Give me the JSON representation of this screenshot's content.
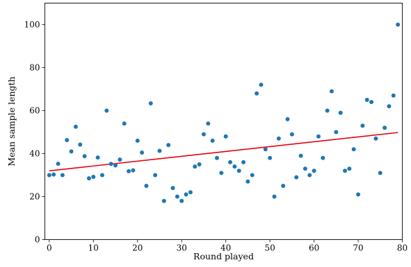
{
  "chart_data": {
    "type": "scatter",
    "xlabel": "Round played",
    "ylabel": "Mean sample length",
    "xlim": [
      -1,
      80
    ],
    "ylim": [
      0,
      110
    ],
    "xticks": [
      0,
      10,
      20,
      30,
      40,
      50,
      60,
      70,
      80
    ],
    "yticks": [
      0,
      20,
      40,
      60,
      80,
      100
    ],
    "grid": false,
    "series": [
      {
        "kind": "points",
        "color": "#1f77b4",
        "x": [
          0,
          1,
          2,
          3,
          4,
          5,
          6,
          7,
          8,
          9,
          10,
          11,
          12,
          13,
          14,
          15,
          16,
          17,
          18,
          19,
          20,
          21,
          22,
          23,
          24,
          25,
          26,
          27,
          28,
          29,
          30,
          31,
          32,
          33,
          34,
          35,
          36,
          37,
          38,
          39,
          40,
          41,
          42,
          43,
          44,
          45,
          46,
          47,
          48,
          49,
          50,
          51,
          52,
          53,
          54,
          55,
          56,
          57,
          58,
          59,
          60,
          61,
          62,
          63,
          64,
          65,
          66,
          67,
          68,
          69,
          70,
          71,
          72,
          73,
          74,
          75,
          76,
          77,
          78,
          79
        ],
        "y": [
          30,
          30.3,
          35.3,
          30,
          46.3,
          41,
          52.5,
          44.2,
          38.8,
          28.5,
          29.2,
          38.2,
          30,
          60,
          35.2,
          34.5,
          37.2,
          54,
          31.8,
          32.2,
          46,
          40.5,
          25,
          63.4,
          30,
          41.3,
          18,
          44,
          24,
          20,
          18,
          21,
          22,
          34,
          35,
          49,
          54,
          46,
          38,
          31,
          48,
          36,
          34,
          32,
          36,
          27,
          30,
          68,
          72,
          42,
          38,
          20,
          47,
          25,
          56,
          49,
          29,
          39,
          33,
          30,
          32,
          48,
          38,
          60,
          69,
          50,
          59,
          32,
          33,
          42,
          21,
          53,
          65,
          64,
          47,
          31,
          52,
          62,
          67,
          100
        ]
      },
      {
        "kind": "trend",
        "color": "#e8000b",
        "x": [
          0,
          79
        ],
        "y": [
          32,
          49.8
        ]
      }
    ]
  }
}
